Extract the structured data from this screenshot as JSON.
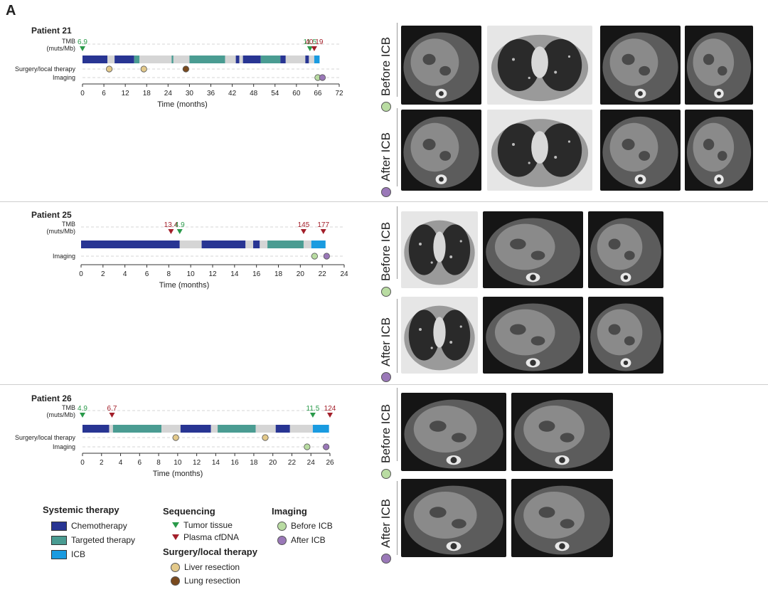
{
  "panel_label": "A",
  "colors": {
    "chemo": "#283593",
    "targeted": "#4a9c92",
    "icb": "#1a9be0",
    "gap": "#d5d5d5",
    "tumor_tissue": "#2a9a4a",
    "plasma_cfdna": "#a31f2a",
    "liver_resection": "#e3c98a",
    "lung_resection": "#7a4a1e",
    "before_icb": "#b9dca2",
    "after_icb": "#9a78b8"
  },
  "row_labels": {
    "tmb": "TMB",
    "tmb_unit": "(muts/Mb)",
    "surgery": "Surgery/local therapy",
    "imaging": "Imaging",
    "time_axis": "Time (months)"
  },
  "patients": [
    {
      "name": "Patient 21",
      "has_surgery": true,
      "xmax": 72,
      "ticks": [
        "0",
        "6",
        "12",
        "18",
        "24",
        "30",
        "36",
        "42",
        "48",
        "54",
        "60",
        "66",
        "72"
      ],
      "segments": [
        {
          "type": "chemo",
          "start": 0,
          "end": 7
        },
        {
          "type": "gap",
          "start": 7,
          "end": 9
        },
        {
          "type": "chemo",
          "start": 9,
          "end": 14.5
        },
        {
          "type": "targeted",
          "start": 14.5,
          "end": 16
        },
        {
          "type": "gap",
          "start": 16,
          "end": 25
        },
        {
          "type": "targeted",
          "start": 25,
          "end": 25.5
        },
        {
          "type": "gap",
          "start": 25.5,
          "end": 30
        },
        {
          "type": "targeted",
          "start": 30,
          "end": 40
        },
        {
          "type": "gap",
          "start": 40,
          "end": 43
        },
        {
          "type": "chemo",
          "start": 43,
          "end": 44
        },
        {
          "type": "gap",
          "start": 44,
          "end": 45
        },
        {
          "type": "chemo",
          "start": 45,
          "end": 50
        },
        {
          "type": "targeted",
          "start": 50,
          "end": 55.5
        },
        {
          "type": "chemo",
          "start": 55.5,
          "end": 57
        },
        {
          "type": "gap",
          "start": 57,
          "end": 62.5
        },
        {
          "type": "chemo",
          "start": 62.5,
          "end": 63.5
        },
        {
          "type": "gap",
          "start": 63.5,
          "end": 65
        },
        {
          "type": "icb",
          "start": 65,
          "end": 66.5
        }
      ],
      "tmb_markers": [
        {
          "kind": "tumor_tissue",
          "t": 0,
          "label": "6.9"
        },
        {
          "kind": "tumor_tissue",
          "t": 63.8,
          "label": "11.5"
        },
        {
          "kind": "plasma_cfdna",
          "t": 65,
          "label": "40.19"
        }
      ],
      "surgery_events": [
        {
          "kind": "liver_resection",
          "t": 7.5
        },
        {
          "kind": "liver_resection",
          "t": 17.2
        },
        {
          "kind": "lung_resection",
          "t": 29
        }
      ],
      "imaging_events": [
        {
          "kind": "before_icb",
          "t": 66
        },
        {
          "kind": "after_icb",
          "t": 67.3
        }
      ]
    },
    {
      "name": "Patient 25",
      "has_surgery": false,
      "xmax": 24,
      "ticks": [
        "0",
        "2",
        "4",
        "6",
        "8",
        "10",
        "12",
        "14",
        "16",
        "18",
        "20",
        "22",
        "24"
      ],
      "segments": [
        {
          "type": "chemo",
          "start": 0,
          "end": 9
        },
        {
          "type": "gap",
          "start": 9,
          "end": 11
        },
        {
          "type": "chemo",
          "start": 11,
          "end": 15
        },
        {
          "type": "gap",
          "start": 15,
          "end": 15.7
        },
        {
          "type": "chemo",
          "start": 15.7,
          "end": 16.3
        },
        {
          "type": "gap",
          "start": 16.3,
          "end": 17
        },
        {
          "type": "targeted",
          "start": 17,
          "end": 20.3
        },
        {
          "type": "gap",
          "start": 20.3,
          "end": 21
        },
        {
          "type": "icb",
          "start": 21,
          "end": 22.3
        }
      ],
      "tmb_markers": [
        {
          "kind": "plasma_cfdna",
          "t": 8.2,
          "label": "13.4"
        },
        {
          "kind": "tumor_tissue",
          "t": 9,
          "label": "4.9"
        },
        {
          "kind": "plasma_cfdna",
          "t": 20.3,
          "label": "145"
        },
        {
          "kind": "plasma_cfdna",
          "t": 22.1,
          "label": "177"
        }
      ],
      "surgery_events": [],
      "imaging_events": [
        {
          "kind": "before_icb",
          "t": 21.3
        },
        {
          "kind": "after_icb",
          "t": 22.4
        }
      ]
    },
    {
      "name": "Patient 26",
      "has_surgery": true,
      "xmax": 26,
      "ticks": [
        "0",
        "2",
        "4",
        "6",
        "8",
        "10",
        "12",
        "14",
        "16",
        "18",
        "20",
        "22",
        "24",
        "26"
      ],
      "segments": [
        {
          "type": "chemo",
          "start": 0,
          "end": 2.8
        },
        {
          "type": "gap",
          "start": 2.8,
          "end": 3.2
        },
        {
          "type": "targeted",
          "start": 3.2,
          "end": 8.3
        },
        {
          "type": "gap",
          "start": 8.3,
          "end": 10.3
        },
        {
          "type": "chemo",
          "start": 10.3,
          "end": 13.5
        },
        {
          "type": "gap",
          "start": 13.5,
          "end": 14.2
        },
        {
          "type": "targeted",
          "start": 14.2,
          "end": 18.2
        },
        {
          "type": "gap",
          "start": 18.2,
          "end": 20.3
        },
        {
          "type": "chemo",
          "start": 20.3,
          "end": 21.8
        },
        {
          "type": "gap",
          "start": 21.8,
          "end": 24.2
        },
        {
          "type": "icb",
          "start": 24.2,
          "end": 25.9
        }
      ],
      "tmb_markers": [
        {
          "kind": "tumor_tissue",
          "t": 0,
          "label": "4.9"
        },
        {
          "kind": "plasma_cfdna",
          "t": 3.1,
          "label": "6.7"
        },
        {
          "kind": "tumor_tissue",
          "t": 24.2,
          "label": "11.5"
        },
        {
          "kind": "plasma_cfdna",
          "t": 26,
          "label": "124"
        }
      ],
      "surgery_events": [
        {
          "kind": "liver_resection",
          "t": 9.8
        },
        {
          "kind": "liver_resection",
          "t": 19.2
        }
      ],
      "imaging_events": [
        {
          "kind": "before_icb",
          "t": 23.6
        },
        {
          "kind": "after_icb",
          "t": 25.6
        }
      ]
    }
  ],
  "image_labels": {
    "before": "Before ICB",
    "after": "After ICB"
  },
  "legend": {
    "systemic_title": "Systemic therapy",
    "chemo": "Chemotherapy",
    "targeted": "Targeted therapy",
    "icb": "ICB",
    "sequencing_title": "Sequencing",
    "tumor_tissue": "Tumor tissue",
    "plasma_cfdna": "Plasma cfDNA",
    "surgery_title": "Surgery/local therapy",
    "liver_resection": "Liver resection",
    "lung_resection": "Lung resection",
    "imaging_title": "Imaging",
    "before_icb": "Before ICB",
    "after_icb": "After ICB"
  }
}
